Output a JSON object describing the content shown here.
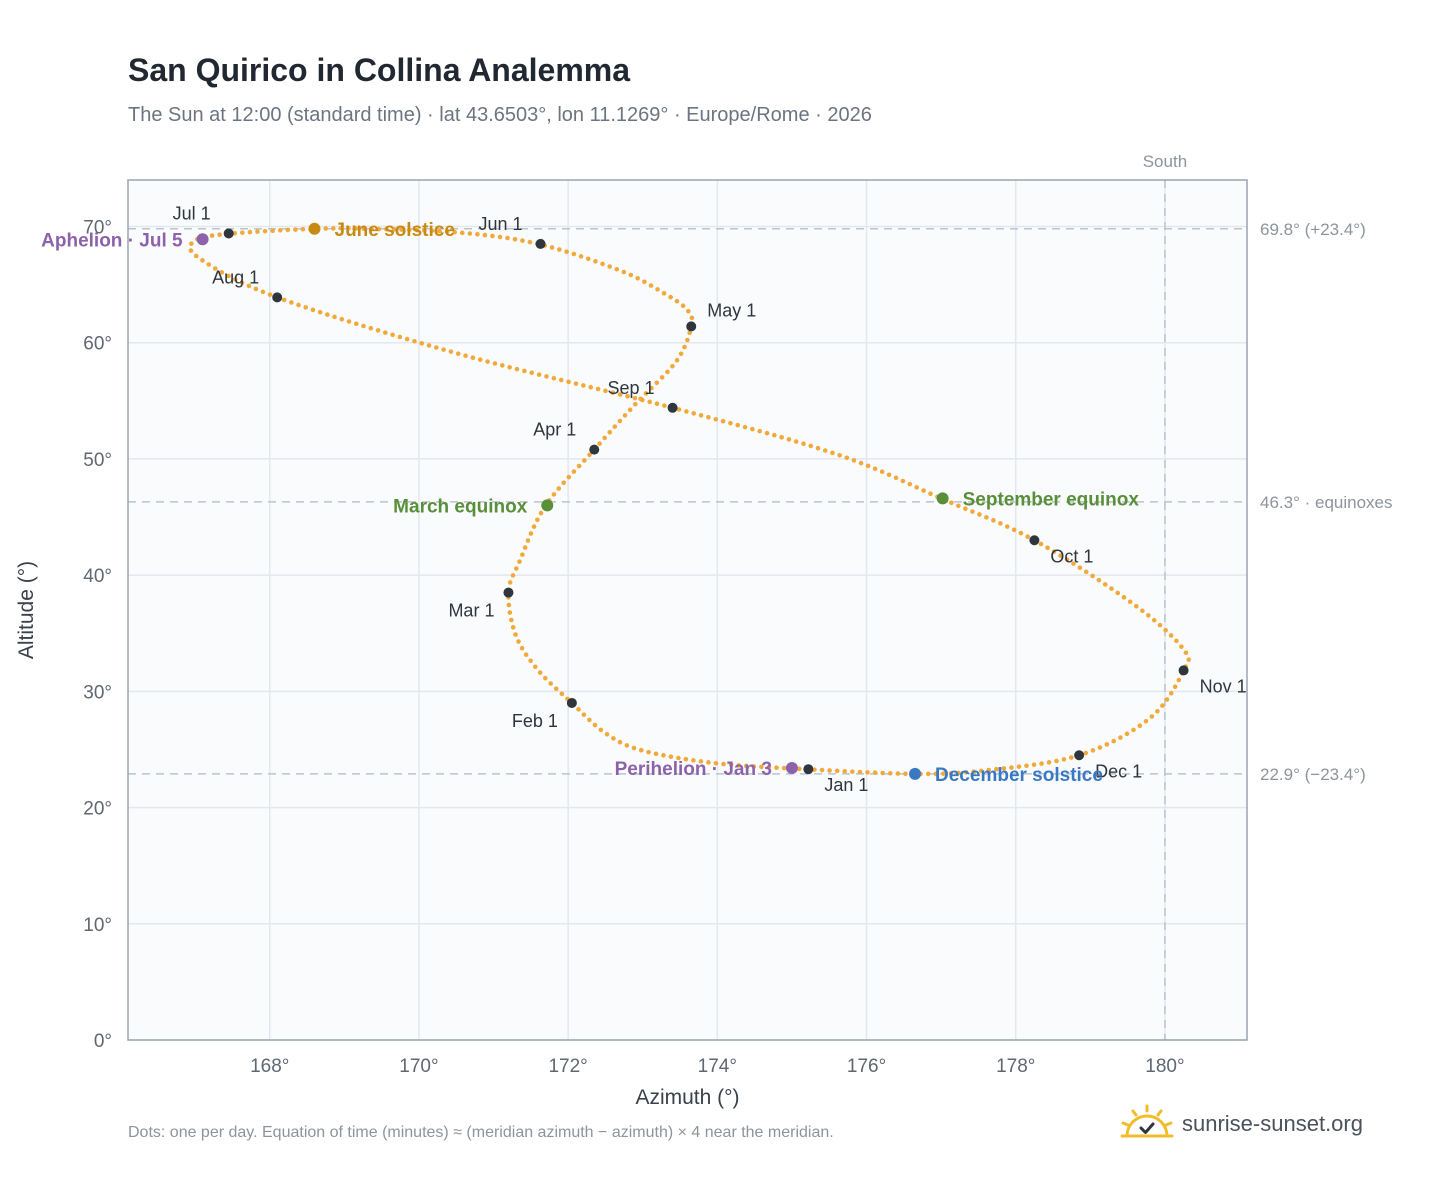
{
  "header": {
    "title": "San Quirico in Collina Analemma",
    "subtitle": "The Sun at 12:00 (standard time) · lat 43.6503°, lon 11.1269° · Europe/Rome · 2026"
  },
  "footer": {
    "note": "Dots: one per day. Equation of time (minutes) ≈ (meridian azimuth − azimuth) × 4 near the meridian.",
    "brand": "sunrise-sunset.org",
    "brand_icon": "sun-logo-icon"
  },
  "colors": {
    "path": "#f2a93b",
    "month_marker": "#30363d",
    "solstice_june": "#c98a14",
    "equinox": "#5a8f3a",
    "solstice_december": "#3a78c2",
    "apsis": "#8c63aa",
    "plot_background": "#f9fbfd",
    "grid": "#e3e8ee",
    "reference_line": "#b9c4cf",
    "axis_border": "#9aa4b0"
  },
  "chart_data": {
    "type": "scatter",
    "xlabel": "Azimuth (°)",
    "ylabel": "Altitude (°)",
    "xlim": [
      166.1,
      181.1
    ],
    "ylim": [
      0,
      74
    ],
    "x_ticks": [
      168,
      170,
      172,
      174,
      176,
      178,
      180
    ],
    "x_tick_labels": [
      "168°",
      "170°",
      "172°",
      "174°",
      "176°",
      "178°",
      "180°"
    ],
    "y_ticks": [
      0,
      10,
      20,
      30,
      40,
      50,
      60,
      70
    ],
    "y_tick_labels": [
      "0°",
      "10°",
      "20°",
      "30°",
      "40°",
      "50°",
      "60°",
      "70°"
    ],
    "grid": true,
    "daily_path": [
      [
        175.2,
        23.3
      ],
      [
        174.0,
        23.8
      ],
      [
        173.0,
        24.9
      ],
      [
        172.5,
        26.4
      ],
      [
        172.05,
        29.0
      ],
      [
        171.6,
        31.8
      ],
      [
        171.3,
        34.8
      ],
      [
        171.2,
        38.5
      ],
      [
        171.35,
        41.2
      ],
      [
        171.7,
        46.0
      ],
      [
        172.35,
        50.8
      ],
      [
        172.9,
        54.7
      ],
      [
        173.45,
        58.4
      ],
      [
        173.65,
        61.4
      ],
      [
        173.6,
        62.8
      ],
      [
        173.3,
        64.2
      ],
      [
        172.7,
        66.2
      ],
      [
        171.6,
        68.5
      ],
      [
        170.5,
        69.5
      ],
      [
        169.3,
        69.8
      ],
      [
        168.6,
        69.8
      ],
      [
        167.5,
        69.4
      ],
      [
        167.0,
        68.8
      ],
      [
        167.05,
        67.3
      ],
      [
        168.1,
        63.9
      ],
      [
        170.5,
        59.1
      ],
      [
        173.4,
        54.4
      ],
      [
        175.6,
        50.4
      ],
      [
        177.0,
        46.6
      ],
      [
        178.25,
        43.0
      ],
      [
        179.6,
        37.4
      ],
      [
        180.25,
        33.6
      ],
      [
        180.25,
        31.8
      ],
      [
        179.8,
        27.7
      ],
      [
        178.85,
        24.5
      ],
      [
        177.6,
        23.2
      ],
      [
        176.65,
        22.9
      ],
      [
        175.2,
        23.3
      ]
    ],
    "month_markers": [
      {
        "label": "Jan 1",
        "x": 175.22,
        "y": 23.3,
        "anchor": "below-right"
      },
      {
        "label": "Feb 1",
        "x": 172.05,
        "y": 29.0,
        "anchor": "below-left"
      },
      {
        "label": "Mar 1",
        "x": 171.2,
        "y": 38.5,
        "anchor": "below-left"
      },
      {
        "label": "Apr 1",
        "x": 172.35,
        "y": 50.8,
        "anchor": "above-left"
      },
      {
        "label": "May 1",
        "x": 173.65,
        "y": 61.4,
        "anchor": "above-right"
      },
      {
        "label": "Jun 1",
        "x": 171.63,
        "y": 68.5,
        "anchor": "above-left"
      },
      {
        "label": "Jul 1",
        "x": 167.45,
        "y": 69.4,
        "anchor": "above-left"
      },
      {
        "label": "Aug 1",
        "x": 168.1,
        "y": 63.9,
        "anchor": "above-left"
      },
      {
        "label": "Sep 1",
        "x": 173.4,
        "y": 54.4,
        "anchor": "above-left"
      },
      {
        "label": "Oct 1",
        "x": 178.25,
        "y": 43.0,
        "anchor": "below-right"
      },
      {
        "label": "Nov 1",
        "x": 180.25,
        "y": 31.8,
        "anchor": "below-right"
      },
      {
        "label": "Dec 1",
        "x": 178.85,
        "y": 24.5,
        "anchor": "below-right"
      }
    ],
    "events": [
      {
        "label": "June solstice",
        "x": 168.6,
        "y": 69.8,
        "color": "#c98a14",
        "side": "right"
      },
      {
        "label": "March equinox",
        "x": 171.72,
        "y": 46.0,
        "color": "#5a8f3a",
        "side": "left"
      },
      {
        "label": "September equinox",
        "x": 177.02,
        "y": 46.6,
        "color": "#5a8f3a",
        "side": "right"
      },
      {
        "label": "December solstice",
        "x": 176.65,
        "y": 22.9,
        "color": "#3a78c2",
        "side": "right"
      },
      {
        "label": "Aphelion · Jul 5",
        "x": 167.1,
        "y": 68.9,
        "color": "#8c63aa",
        "side": "left"
      },
      {
        "label": "Perihelion · Jan 3",
        "x": 175.0,
        "y": 23.4,
        "color": "#8c63aa",
        "side": "left"
      }
    ],
    "reference_lines": [
      {
        "orientation": "horizontal",
        "value": 69.8,
        "label": "69.8° (+23.4°)"
      },
      {
        "orientation": "horizontal",
        "value": 46.3,
        "label": "46.3° · equinoxes"
      },
      {
        "orientation": "horizontal",
        "value": 22.9,
        "label": "22.9° (−23.4°)"
      },
      {
        "orientation": "vertical",
        "value": 180,
        "label": "South"
      }
    ]
  }
}
